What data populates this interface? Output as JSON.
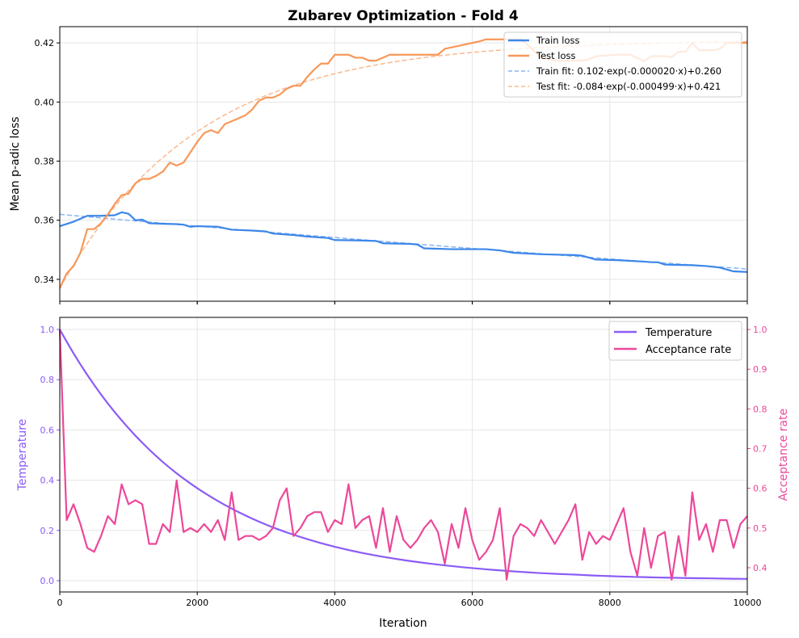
{
  "chart_data": [
    {
      "type": "line",
      "title": "Zubarev Optimization - Fold 4",
      "xlabel": "",
      "ylabel": "Mean p-adic loss",
      "xlim": [
        0,
        10000
      ],
      "ylim": [
        0.3326,
        0.4255
      ],
      "xticks": [
        0,
        2000,
        4000,
        6000,
        8000,
        10000
      ],
      "yticks": [
        "0.34",
        "0.36",
        "0.38",
        "0.40",
        "0.42"
      ],
      "grid": true,
      "legend_position": "top-right",
      "series": [
        {
          "name": "Train loss",
          "color": "#3d87e8",
          "style": "solid",
          "x": [
            0,
            200,
            400,
            600,
            800,
            900,
            1000,
            1100,
            1200,
            1300,
            1500,
            1700,
            1800,
            1900,
            2000,
            2300,
            2500,
            2800,
            3000,
            3100,
            3400,
            3600,
            3900,
            4000,
            4300,
            4600,
            4700,
            5100,
            5200,
            5300,
            5700,
            6200,
            6400,
            6600,
            7000,
            7500,
            7600,
            7800,
            8100,
            8500,
            8600,
            8700,
            8800,
            9200,
            9400,
            9600,
            9800,
            10000
          ],
          "y": [
            0.358,
            0.3595,
            0.3615,
            0.3615,
            0.3617,
            0.3627,
            0.3622,
            0.36,
            0.3602,
            0.359,
            0.3588,
            0.3587,
            0.3585,
            0.3578,
            0.358,
            0.3578,
            0.3568,
            0.3565,
            0.3562,
            0.3555,
            0.355,
            0.3545,
            0.354,
            0.3533,
            0.3532,
            0.353,
            0.3522,
            0.352,
            0.3518,
            0.3505,
            0.3502,
            0.3502,
            0.3498,
            0.349,
            0.3485,
            0.3482,
            0.348,
            0.3467,
            0.3465,
            0.346,
            0.3458,
            0.3458,
            0.345,
            0.3448,
            0.3445,
            0.344,
            0.3427,
            0.3425
          ]
        },
        {
          "name": "Test loss",
          "color": "#f7985a",
          "style": "solid",
          "x": [
            0,
            100,
            200,
            300,
            400,
            500,
            600,
            700,
            800,
            900,
            1000,
            1100,
            1200,
            1300,
            1400,
            1500,
            1600,
            1700,
            1800,
            1900,
            2000,
            2100,
            2200,
            2300,
            2400,
            2500,
            2600,
            2700,
            2800,
            2900,
            3000,
            3100,
            3200,
            3300,
            3400,
            3500,
            3600,
            3700,
            3800,
            3900,
            4000,
            4200,
            4300,
            4400,
            4500,
            4600,
            4800,
            5000,
            5500,
            5600,
            5800,
            6000,
            6100,
            6200,
            6700,
            6800,
            7000,
            7200,
            7600,
            7700,
            7800,
            8100,
            8300,
            8500,
            8600,
            8800,
            8900,
            9000,
            9100,
            9200,
            9300,
            9500,
            9600,
            9700,
            10000
          ],
          "y": [
            0.337,
            0.342,
            0.3445,
            0.349,
            0.357,
            0.357,
            0.359,
            0.362,
            0.3655,
            0.3685,
            0.369,
            0.3725,
            0.374,
            0.374,
            0.375,
            0.3765,
            0.3795,
            0.3785,
            0.3795,
            0.383,
            0.3865,
            0.3895,
            0.3905,
            0.3895,
            0.3925,
            0.3935,
            0.3945,
            0.3955,
            0.3975,
            0.4005,
            0.4015,
            0.4015,
            0.4025,
            0.4045,
            0.4055,
            0.4055,
            0.4085,
            0.411,
            0.413,
            0.413,
            0.416,
            0.416,
            0.415,
            0.415,
            0.414,
            0.414,
            0.416,
            0.416,
            0.416,
            0.418,
            0.419,
            0.42,
            0.4205,
            0.4212,
            0.4212,
            0.4195,
            0.415,
            0.414,
            0.414,
            0.4145,
            0.4155,
            0.416,
            0.416,
            0.4138,
            0.4155,
            0.4155,
            0.4152,
            0.417,
            0.417,
            0.42,
            0.4175,
            0.4175,
            0.418,
            0.42,
            0.42
          ]
        },
        {
          "name": "Train fit: 0.102·exp(-0.000020·x)+0.260",
          "color": "#8ab4f0",
          "style": "dashed",
          "fit": {
            "a": 0.102,
            "b": -2e-05,
            "c": 0.26
          }
        },
        {
          "name": "Test fit: -0.084·exp(-0.000499·x)+0.421",
          "color": "#f9b98e",
          "style": "dashed",
          "fit": {
            "a": -0.084,
            "b": -0.000499,
            "c": 0.421
          }
        }
      ]
    },
    {
      "type": "line",
      "xlabel": "Iteration",
      "ylabel": "Temperature",
      "ylabel_right": "Acceptance rate",
      "xlim": [
        0,
        10000
      ],
      "ylim": [
        -0.045,
        1.048
      ],
      "ylim_right": [
        0.339,
        1.0305
      ],
      "xticks": [
        "0",
        "2000",
        "4000",
        "6000",
        "8000",
        "10000"
      ],
      "yticks": [
        "0.0",
        "0.2",
        "0.4",
        "0.6",
        "0.8",
        "1.0"
      ],
      "yticks_right": [
        "0.4",
        "0.5",
        "0.6",
        "0.7",
        "0.8",
        "0.9",
        "1.0"
      ],
      "grid": true,
      "legend_position": "top-right",
      "series": [
        {
          "name": "Temperature",
          "color": "#8b5cf6",
          "axis": "left",
          "x": [
            0,
            500,
            1000,
            1500,
            2000,
            2500,
            3000,
            3500,
            4000,
            4500,
            5000,
            5500,
            6000,
            6500,
            7000,
            7500,
            8000,
            8500,
            9000,
            9500,
            10000
          ],
          "y": [
            1.0,
            0.779,
            0.607,
            0.472,
            0.368,
            0.287,
            0.223,
            0.174,
            0.135,
            0.105,
            0.082,
            0.064,
            0.05,
            0.039,
            0.03,
            0.024,
            0.018,
            0.014,
            0.011,
            0.009,
            0.007
          ]
        },
        {
          "name": "Acceptance rate",
          "color": "#ec4899",
          "axis": "right",
          "x_step": 100,
          "y": [
            1.0,
            0.52,
            0.56,
            0.51,
            0.45,
            0.44,
            0.48,
            0.53,
            0.51,
            0.61,
            0.56,
            0.57,
            0.56,
            0.46,
            0.46,
            0.51,
            0.49,
            0.62,
            0.49,
            0.5,
            0.49,
            0.51,
            0.49,
            0.52,
            0.47,
            0.59,
            0.47,
            0.48,
            0.48,
            0.47,
            0.48,
            0.5,
            0.57,
            0.6,
            0.48,
            0.5,
            0.53,
            0.54,
            0.54,
            0.49,
            0.52,
            0.51,
            0.61,
            0.5,
            0.52,
            0.53,
            0.45,
            0.55,
            0.44,
            0.53,
            0.47,
            0.45,
            0.47,
            0.5,
            0.52,
            0.49,
            0.41,
            0.51,
            0.45,
            0.55,
            0.47,
            0.42,
            0.44,
            0.47,
            0.55,
            0.37,
            0.48,
            0.51,
            0.5,
            0.48,
            0.52,
            0.49,
            0.46,
            0.49,
            0.52,
            0.56,
            0.42,
            0.49,
            0.46,
            0.48,
            0.47,
            0.51,
            0.55,
            0.44,
            0.38,
            0.5,
            0.4,
            0.48,
            0.49,
            0.37,
            0.48,
            0.38,
            0.59,
            0.47,
            0.51,
            0.44,
            0.52,
            0.52,
            0.45,
            0.51,
            0.53
          ]
        }
      ]
    }
  ]
}
